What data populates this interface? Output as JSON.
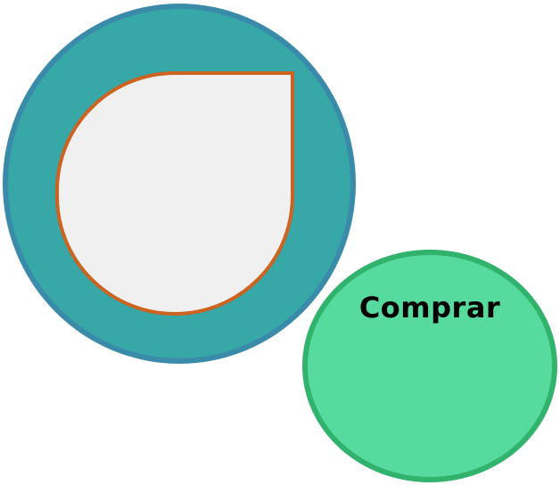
{
  "colors": {
    "big_circle_fill": "#37a7a7",
    "big_circle_border": "#3a8aa9",
    "drop_fill": "#f0f0f0",
    "drop_border": "#cc6320",
    "button_fill": "#57da9d",
    "button_border": "#31b36e",
    "label_color": "#000000"
  },
  "buy_button": {
    "label": "Comprar"
  }
}
